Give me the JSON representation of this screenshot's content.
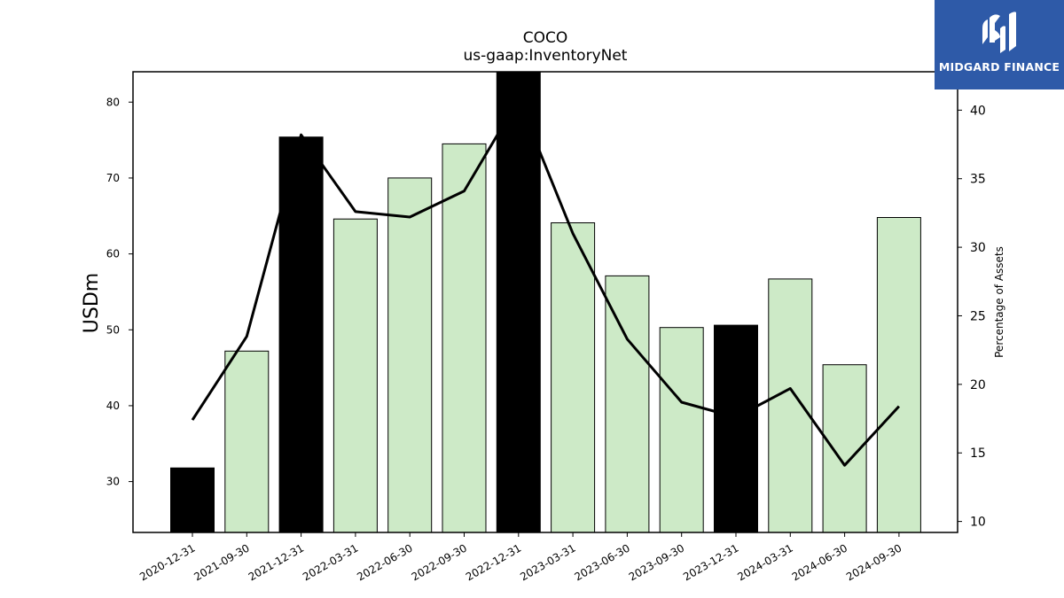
{
  "chart_data": {
    "type": "bar",
    "title": "COCO",
    "subtitle": "us-gaap:InventoryNet",
    "ylabel": "USDm",
    "ylabel_right": "Percentage of Assets",
    "categories": [
      "2020-12-31",
      "2021-09-30",
      "2021-12-31",
      "2022-03-31",
      "2022-06-30",
      "2022-09-30",
      "2022-12-31",
      "2023-03-31",
      "2023-06-30",
      "2023-09-30",
      "2023-12-31",
      "2024-03-31",
      "2024-06-30",
      "2024-09-30"
    ],
    "series": [
      {
        "type": "bar",
        "axis": "left",
        "values": [
          31.8,
          47.2,
          75.4,
          64.6,
          70.0,
          74.5,
          84.0,
          64.1,
          57.1,
          50.3,
          50.6,
          56.7,
          45.4,
          64.8
        ],
        "highlight": [
          true,
          false,
          true,
          false,
          false,
          false,
          true,
          false,
          false,
          false,
          true,
          false,
          false,
          false
        ]
      },
      {
        "type": "line",
        "axis": "right",
        "values": [
          17.4,
          23.5,
          38.2,
          32.6,
          32.2,
          34.1,
          40.8,
          31.0,
          23.3,
          18.7,
          17.6,
          19.7,
          14.1,
          18.4
        ]
      }
    ],
    "ylim": [
      23.3,
      84.0
    ],
    "ylim_right": [
      9.2,
      42.8
    ],
    "yticks": [
      30,
      40,
      50,
      60,
      70,
      80
    ],
    "yticks_right": [
      10,
      15,
      20,
      25,
      30,
      35,
      40
    ],
    "colors": {
      "bar": "#cdeac7",
      "bar_highlight": "#000000",
      "line": "#000000"
    },
    "grid": false
  },
  "logo": {
    "text": "MIDGARD FINANCE",
    "background": "#2e5aa8"
  }
}
